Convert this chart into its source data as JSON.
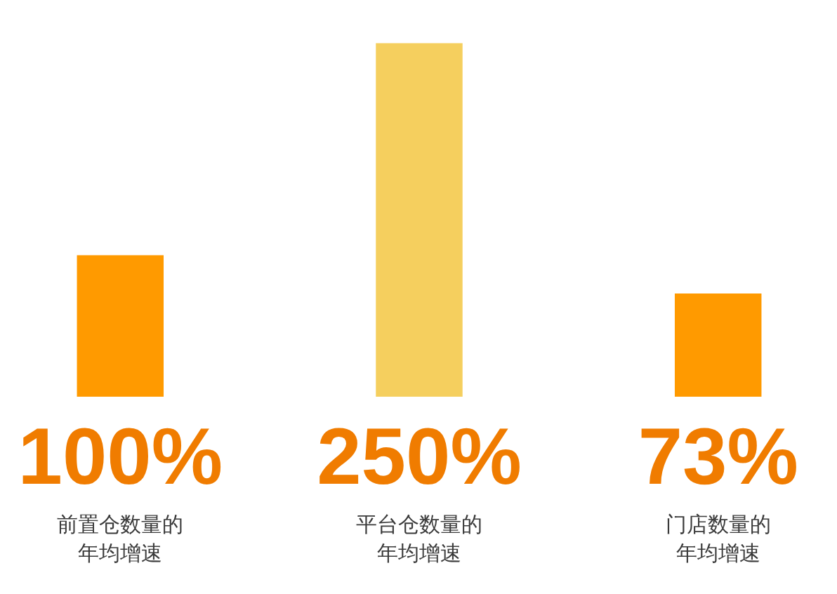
{
  "chart_data": {
    "type": "bar",
    "categories": [
      "前置仓数量的年均增速",
      "平台仓数量的年均增速",
      "门店数量的年均增速"
    ],
    "values": [
      100,
      250,
      73
    ],
    "colors": [
      "#ff9a00",
      "#f5cf5e",
      "#ff9a00"
    ],
    "value_labels": [
      "100%",
      "250%",
      "73%"
    ],
    "tick_labels": "x"
  }
}
